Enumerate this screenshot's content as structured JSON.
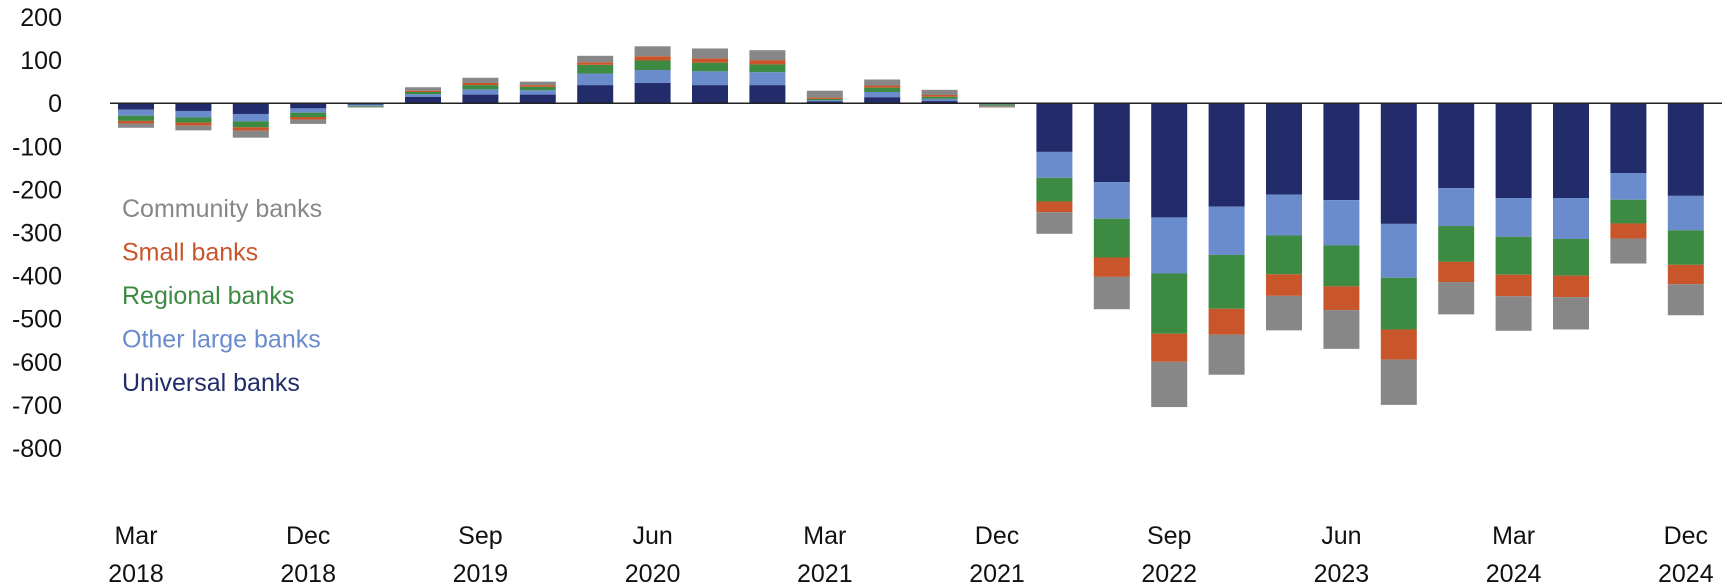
{
  "chart_data": {
    "type": "bar",
    "stacked": true,
    "categories": [
      "Mar 2018",
      "Jun 2018",
      "Sep 2018",
      "Dec 2018",
      "Mar 2019",
      "Jun 2019",
      "Sep 2019",
      "Dec 2019",
      "Mar 2020",
      "Jun 2020",
      "Sep 2020",
      "Dec 2020",
      "Mar 2021",
      "Jun 2021",
      "Sep 2021",
      "Dec 2021",
      "Mar 2022",
      "Jun 2022",
      "Sep 2022",
      "Dec 2022",
      "Mar 2023",
      "Jun 2023",
      "Sep 2023",
      "Dec 2023",
      "Mar 2024",
      "Jun 2024",
      "Sep 2024",
      "Dec 2024"
    ],
    "x_tick_labels": [
      {
        "index": 0,
        "month": "Mar",
        "year": "2018"
      },
      {
        "index": 3,
        "month": "Dec",
        "year": "2018"
      },
      {
        "index": 6,
        "month": "Sep",
        "year": "2019"
      },
      {
        "index": 9,
        "month": "Jun",
        "year": "2020"
      },
      {
        "index": 12,
        "month": "Mar",
        "year": "2021"
      },
      {
        "index": 15,
        "month": "Dec",
        "year": "2021"
      },
      {
        "index": 18,
        "month": "Sep",
        "year": "2022"
      },
      {
        "index": 21,
        "month": "Jun",
        "year": "2023"
      },
      {
        "index": 24,
        "month": "Mar",
        "year": "2024"
      },
      {
        "index": 27,
        "month": "Dec",
        "year": "2024"
      }
    ],
    "y_ticks": [
      200,
      100,
      0,
      -100,
      -200,
      -300,
      -400,
      -500,
      -600,
      -700,
      -800
    ],
    "ylim": [
      -800,
      200
    ],
    "grid": false,
    "legend_position": "left",
    "series": [
      {
        "name": "Universal banks",
        "color": "#232c6a",
        "values": [
          -15,
          -18,
          -25,
          -12,
          -3,
          15,
          20,
          20,
          42,
          47,
          42,
          42,
          4,
          14,
          5,
          -2,
          -113,
          -183,
          -265,
          -240,
          -212,
          -225,
          -280,
          -197,
          -220,
          -220,
          -162,
          -215
        ]
      },
      {
        "name": "Other large banks",
        "color": "#6a8ccc",
        "values": [
          -14,
          -15,
          -17,
          -10,
          -3,
          6,
          12,
          10,
          27,
          30,
          32,
          30,
          3,
          12,
          5,
          -1,
          -60,
          -85,
          -130,
          -112,
          -95,
          -105,
          -125,
          -88,
          -90,
          -95,
          -62,
          -80
        ]
      },
      {
        "name": "Regional banks",
        "color": "#3d8a42",
        "values": [
          -12,
          -12,
          -14,
          -10,
          -2,
          5,
          10,
          8,
          20,
          22,
          20,
          18,
          3,
          10,
          5,
          -3,
          -55,
          -90,
          -140,
          -125,
          -90,
          -95,
          -120,
          -83,
          -88,
          -85,
          -55,
          -80
        ]
      },
      {
        "name": "Small banks",
        "color": "#c9552b",
        "values": [
          -6,
          -7,
          -8,
          -6,
          0,
          3,
          5,
          4,
          6,
          10,
          10,
          10,
          3,
          5,
          4,
          -1,
          -25,
          -45,
          -65,
          -60,
          -50,
          -55,
          -70,
          -47,
          -50,
          -50,
          -35,
          -45
        ]
      },
      {
        "name": "Community banks",
        "color": "#878787",
        "values": [
          -10,
          -11,
          -16,
          -10,
          -2,
          8,
          12,
          8,
          15,
          23,
          23,
          23,
          16,
          14,
          12,
          -3,
          -50,
          -75,
          -105,
          -93,
          -80,
          -90,
          -105,
          -75,
          -80,
          -75,
          -58,
          -72
        ]
      }
    ],
    "legend_order": [
      "Community banks",
      "Small banks",
      "Regional banks",
      "Other large banks",
      "Universal banks"
    ]
  }
}
